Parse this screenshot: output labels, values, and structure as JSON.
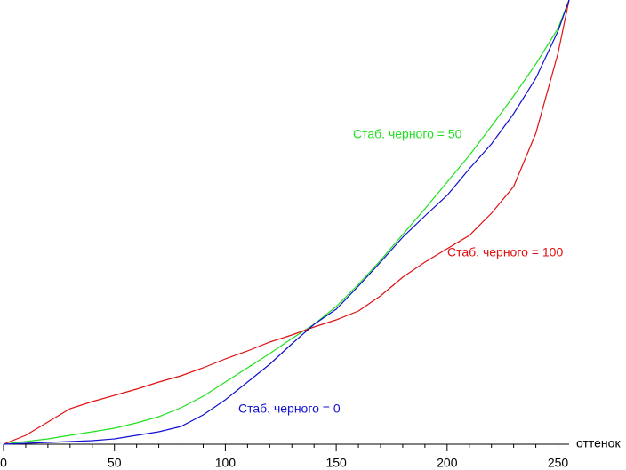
{
  "chart_data": {
    "type": "line",
    "x_label": "оттенок",
    "x": [
      0,
      10,
      20,
      30,
      40,
      50,
      60,
      70,
      80,
      90,
      100,
      110,
      120,
      130,
      140,
      150,
      160,
      170,
      180,
      190,
      200,
      210,
      220,
      230,
      240,
      250,
      255
    ],
    "series": [
      {
        "name": "Стаб. черного = 50",
        "color": "#20e020",
        "values": [
          0,
          0.6,
          1.2,
          2,
          2.8,
          3.6,
          4.8,
          6.2,
          8.2,
          10.8,
          14,
          17.2,
          20.4,
          23.8,
          27,
          31,
          36,
          41.4,
          47.2,
          53,
          59,
          65,
          71.6,
          78.4,
          85.6,
          93.6,
          100
        ]
      },
      {
        "name": "Стаб. черного = 100",
        "color": "#e01010",
        "values": [
          0,
          2,
          5,
          8,
          9.6,
          11,
          12.4,
          14,
          15.4,
          17.2,
          19.2,
          21,
          23,
          24.6,
          26.4,
          28,
          30,
          33.4,
          37.6,
          41,
          44,
          47,
          52,
          58,
          70,
          88,
          100
        ]
      },
      {
        "name": "Стаб. черного = 0",
        "color": "#1010d0",
        "values": [
          0,
          0.2,
          0.4,
          0.6,
          0.8,
          1.2,
          2,
          2.8,
          4,
          6.6,
          10,
          14,
          18,
          22.6,
          27,
          30.4,
          35.6,
          41,
          46.6,
          51.4,
          56,
          62,
          67.6,
          74.4,
          82.4,
          93,
          100
        ]
      }
    ],
    "xlim": [
      0,
      255
    ],
    "ylim": [
      0,
      100
    ],
    "xticks": [
      0,
      50,
      100,
      150,
      200,
      250
    ],
    "xminorticks": [
      10,
      20,
      30,
      40,
      60,
      70,
      80,
      90,
      110,
      120,
      130,
      140,
      160,
      170,
      180,
      190,
      210,
      220,
      230,
      240
    ]
  }
}
